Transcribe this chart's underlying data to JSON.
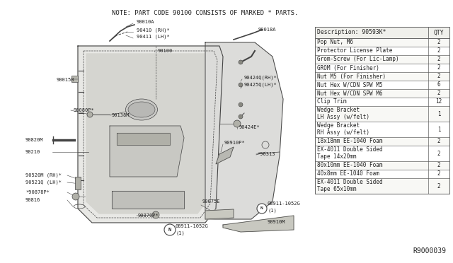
{
  "title_note": "NOTE: PART CODE 90100 CONSISTS OF MARKED * PARTS.",
  "diagram_ref": "R9000039",
  "table_header_desc": "Description: 90593K*",
  "table_header_qty": "QTY",
  "table_rows": [
    [
      "Pop Nut, M6",
      "2"
    ],
    [
      "Protector License Plate",
      "2"
    ],
    [
      "Grom-Screw (For Lic-Lamp)",
      "2"
    ],
    [
      "GROM (For Finisher)",
      "2"
    ],
    [
      "Nut M5 (For Finisher)",
      "2"
    ],
    [
      "Nut Hex W/CDN SPW M5",
      "6"
    ],
    [
      "Nut Hex W/CDN SPW M6",
      "2"
    ],
    [
      "Clip Trim",
      "12"
    ],
    [
      "Wedge Bracket\nLH Assy (w/felt)",
      "1"
    ],
    [
      "Wedge Bracket\nRH Assy (w/felt)",
      "1"
    ],
    [
      "18x18mm EE-1040 Foam",
      "2"
    ],
    [
      "EX-4011 Double Sided\nTape 14x20mm",
      "2"
    ],
    [
      "80x10mm EE-1040 Foam",
      "2"
    ],
    [
      "40x8mm EE-1040 Foam",
      "2"
    ],
    [
      "EX-4011 Double Sided\nTape 65x10mm",
      "2"
    ]
  ],
  "bg_color": "#ffffff",
  "line_color": "#444444",
  "table_border": "#666666",
  "text_color": "#222222",
  "font_size_note": 6.5,
  "font_size_label": 5.0,
  "font_size_table_header": 5.8,
  "font_size_table": 5.5,
  "font_size_ref": 7.0
}
